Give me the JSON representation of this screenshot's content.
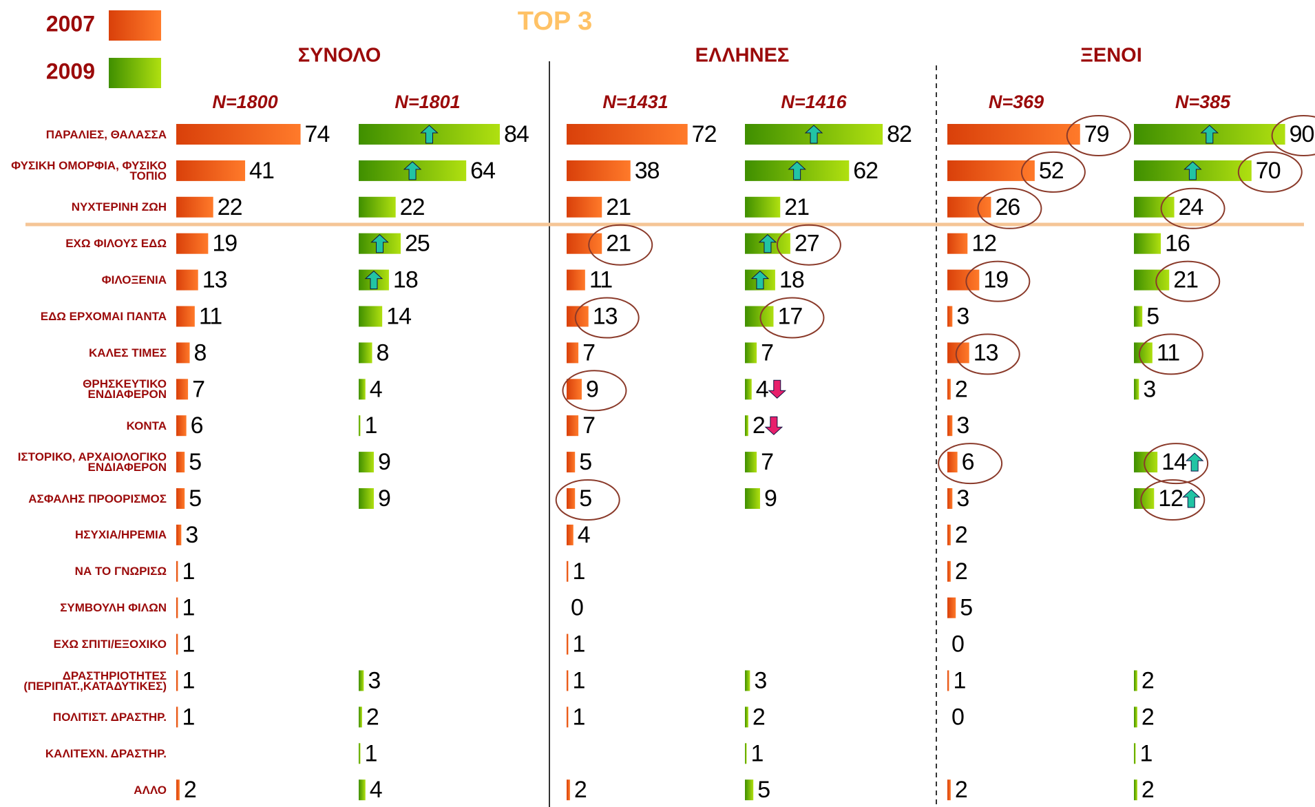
{
  "title": "TOP 3",
  "chart_data": [
    {
      "type": "bar",
      "orientation": "horizontal",
      "title": "ΣΥΝΟΛΟ",
      "xlim": [
        0,
        100
      ],
      "categories": [
        "ΠΑΡΑΛΙΕΣ, ΘΑΛΑΣΣΑ",
        "ΦΥΣΙΚΗ ΟΜΟΡΦΙΑ, ΦΥΣΙΚΟ ΤΟΠΙΟ",
        "ΝΥΧΤΕΡΙΝΗ ΖΩΗ",
        "ΕΧΩ ΦΙΛΟΥΣ ΕΔΩ",
        "ΦΙΛΟΞΕΝΙΑ",
        "ΕΔΩ ΕΡΧΟΜΑΙ ΠΑΝΤΑ",
        "ΚΑΛΕΣ ΤΙΜΕΣ",
        "ΘΡΗΣΚΕΥΤΙΚΟ ΕΝΔΙΑΦΕΡΟΝ",
        "ΚΟΝΤΑ",
        "ΙΣΤΟΡΙΚΟ, ΑΡΧΑΙΟΛΟΓΙΚΟ ΕΝΔΙΑΦΕΡΟΝ",
        "ΑΣΦΑΛΗΣ ΠΡΟΟΡΙΣΜΟΣ",
        "ΗΣΥΧΙΑ/ΗΡΕΜΙΑ",
        "ΝΑ ΤΟ ΓΝΩΡΙΣΩ",
        "ΣΥΜΒΟΥΛΗ ΦΙΛΩΝ",
        "ΕΧΩ ΣΠΙΤΙ/ΕΞΟΧΙΚΟ",
        "ΔΡΑΣΤΗΡΙΟΤΗΤΕΣ (ΠΕΡΙΠΑΤ.,ΚΑΤΑΔΥΤΙΚΕΣ)",
        "ΠΟΛΙΤΙΣΤ.  ΔΡΑΣΤΗΡ.",
        "ΚΑΛΙΤΕΧΝ.  ΔΡΑΣΤΗΡ.",
        "ΑΛΛΟ"
      ],
      "series": [
        {
          "name": "2007",
          "label": "N=1800",
          "color": "#e8500e",
          "values": [
            74,
            41,
            22,
            19,
            13,
            11,
            8,
            7,
            6,
            5,
            5,
            3,
            1,
            1,
            1,
            1,
            1,
            null,
            2
          ],
          "arrows": [
            null,
            null,
            null,
            null,
            null,
            null,
            null,
            null,
            null,
            null,
            null,
            null,
            null,
            null,
            null,
            null,
            null,
            null,
            null
          ],
          "circled": [
            false,
            false,
            false,
            false,
            false,
            false,
            false,
            false,
            false,
            false,
            false,
            false,
            false,
            false,
            false,
            false,
            false,
            false,
            false
          ]
        },
        {
          "name": "2009",
          "label": "N=1801",
          "color": "#6cb800",
          "values": [
            84,
            64,
            22,
            25,
            18,
            14,
            8,
            4,
            1,
            9,
            9,
            null,
            null,
            null,
            null,
            3,
            2,
            1,
            4
          ],
          "arrows": [
            "up",
            "up",
            null,
            "up",
            "up",
            null,
            null,
            null,
            null,
            null,
            null,
            null,
            null,
            null,
            null,
            null,
            null,
            null,
            null
          ],
          "circled": [
            false,
            false,
            false,
            false,
            false,
            false,
            false,
            false,
            false,
            false,
            false,
            false,
            false,
            false,
            false,
            false,
            false,
            false,
            false
          ]
        }
      ]
    },
    {
      "type": "bar",
      "orientation": "horizontal",
      "title": "ΕΛΛΗΝΕΣ",
      "xlim": [
        0,
        100
      ],
      "series": [
        {
          "name": "2007",
          "label": "N=1431",
          "color": "#e8500e",
          "values": [
            72,
            38,
            21,
            21,
            11,
            13,
            7,
            9,
            7,
            5,
            5,
            4,
            1,
            0,
            1,
            1,
            1,
            null,
            2
          ],
          "arrows": [
            null,
            null,
            null,
            null,
            null,
            null,
            null,
            null,
            null,
            null,
            null,
            null,
            null,
            null,
            null,
            null,
            null,
            null,
            null
          ],
          "circled": [
            false,
            false,
            false,
            true,
            false,
            true,
            false,
            true,
            false,
            false,
            true,
            false,
            false,
            false,
            false,
            false,
            false,
            false,
            false
          ]
        },
        {
          "name": "2009",
          "label": "N=1416",
          "color": "#6cb800",
          "values": [
            82,
            62,
            21,
            27,
            18,
            17,
            7,
            4,
            2,
            7,
            9,
            null,
            null,
            null,
            null,
            3,
            2,
            1,
            5
          ],
          "arrows": [
            "up",
            "up",
            null,
            "up",
            "up",
            null,
            null,
            "down",
            "down",
            null,
            null,
            null,
            null,
            null,
            null,
            null,
            null,
            null,
            null
          ],
          "circled": [
            false,
            false,
            false,
            true,
            false,
            true,
            false,
            false,
            false,
            false,
            false,
            false,
            false,
            false,
            false,
            false,
            false,
            false,
            false
          ]
        }
      ]
    },
    {
      "type": "bar",
      "orientation": "horizontal",
      "title": "ΞΕΝΟΙ",
      "xlim": [
        0,
        100
      ],
      "series": [
        {
          "name": "2007",
          "label": "N=369",
          "color": "#e8500e",
          "values": [
            79,
            52,
            26,
            12,
            19,
            3,
            13,
            2,
            3,
            6,
            3,
            2,
            2,
            5,
            0,
            1,
            0,
            null,
            2
          ],
          "arrows": [
            null,
            null,
            null,
            null,
            null,
            null,
            null,
            null,
            null,
            null,
            null,
            null,
            null,
            null,
            null,
            null,
            null,
            null,
            null
          ],
          "circled": [
            true,
            true,
            true,
            false,
            true,
            false,
            true,
            false,
            false,
            true,
            false,
            false,
            false,
            false,
            false,
            false,
            false,
            false,
            false
          ]
        },
        {
          "name": "2009",
          "label": "N=385",
          "color": "#6cb800",
          "values": [
            90,
            70,
            24,
            16,
            21,
            5,
            11,
            3,
            null,
            14,
            12,
            null,
            null,
            null,
            null,
            2,
            2,
            1,
            2
          ],
          "arrows": [
            "up",
            "up",
            null,
            null,
            null,
            null,
            null,
            null,
            null,
            "up",
            "up",
            null,
            null,
            null,
            null,
            null,
            null,
            null,
            null
          ],
          "circled": [
            true,
            true,
            true,
            false,
            true,
            false,
            true,
            false,
            false,
            true,
            true,
            false,
            false,
            false,
            false,
            false,
            false,
            false,
            false
          ]
        }
      ]
    }
  ]
}
